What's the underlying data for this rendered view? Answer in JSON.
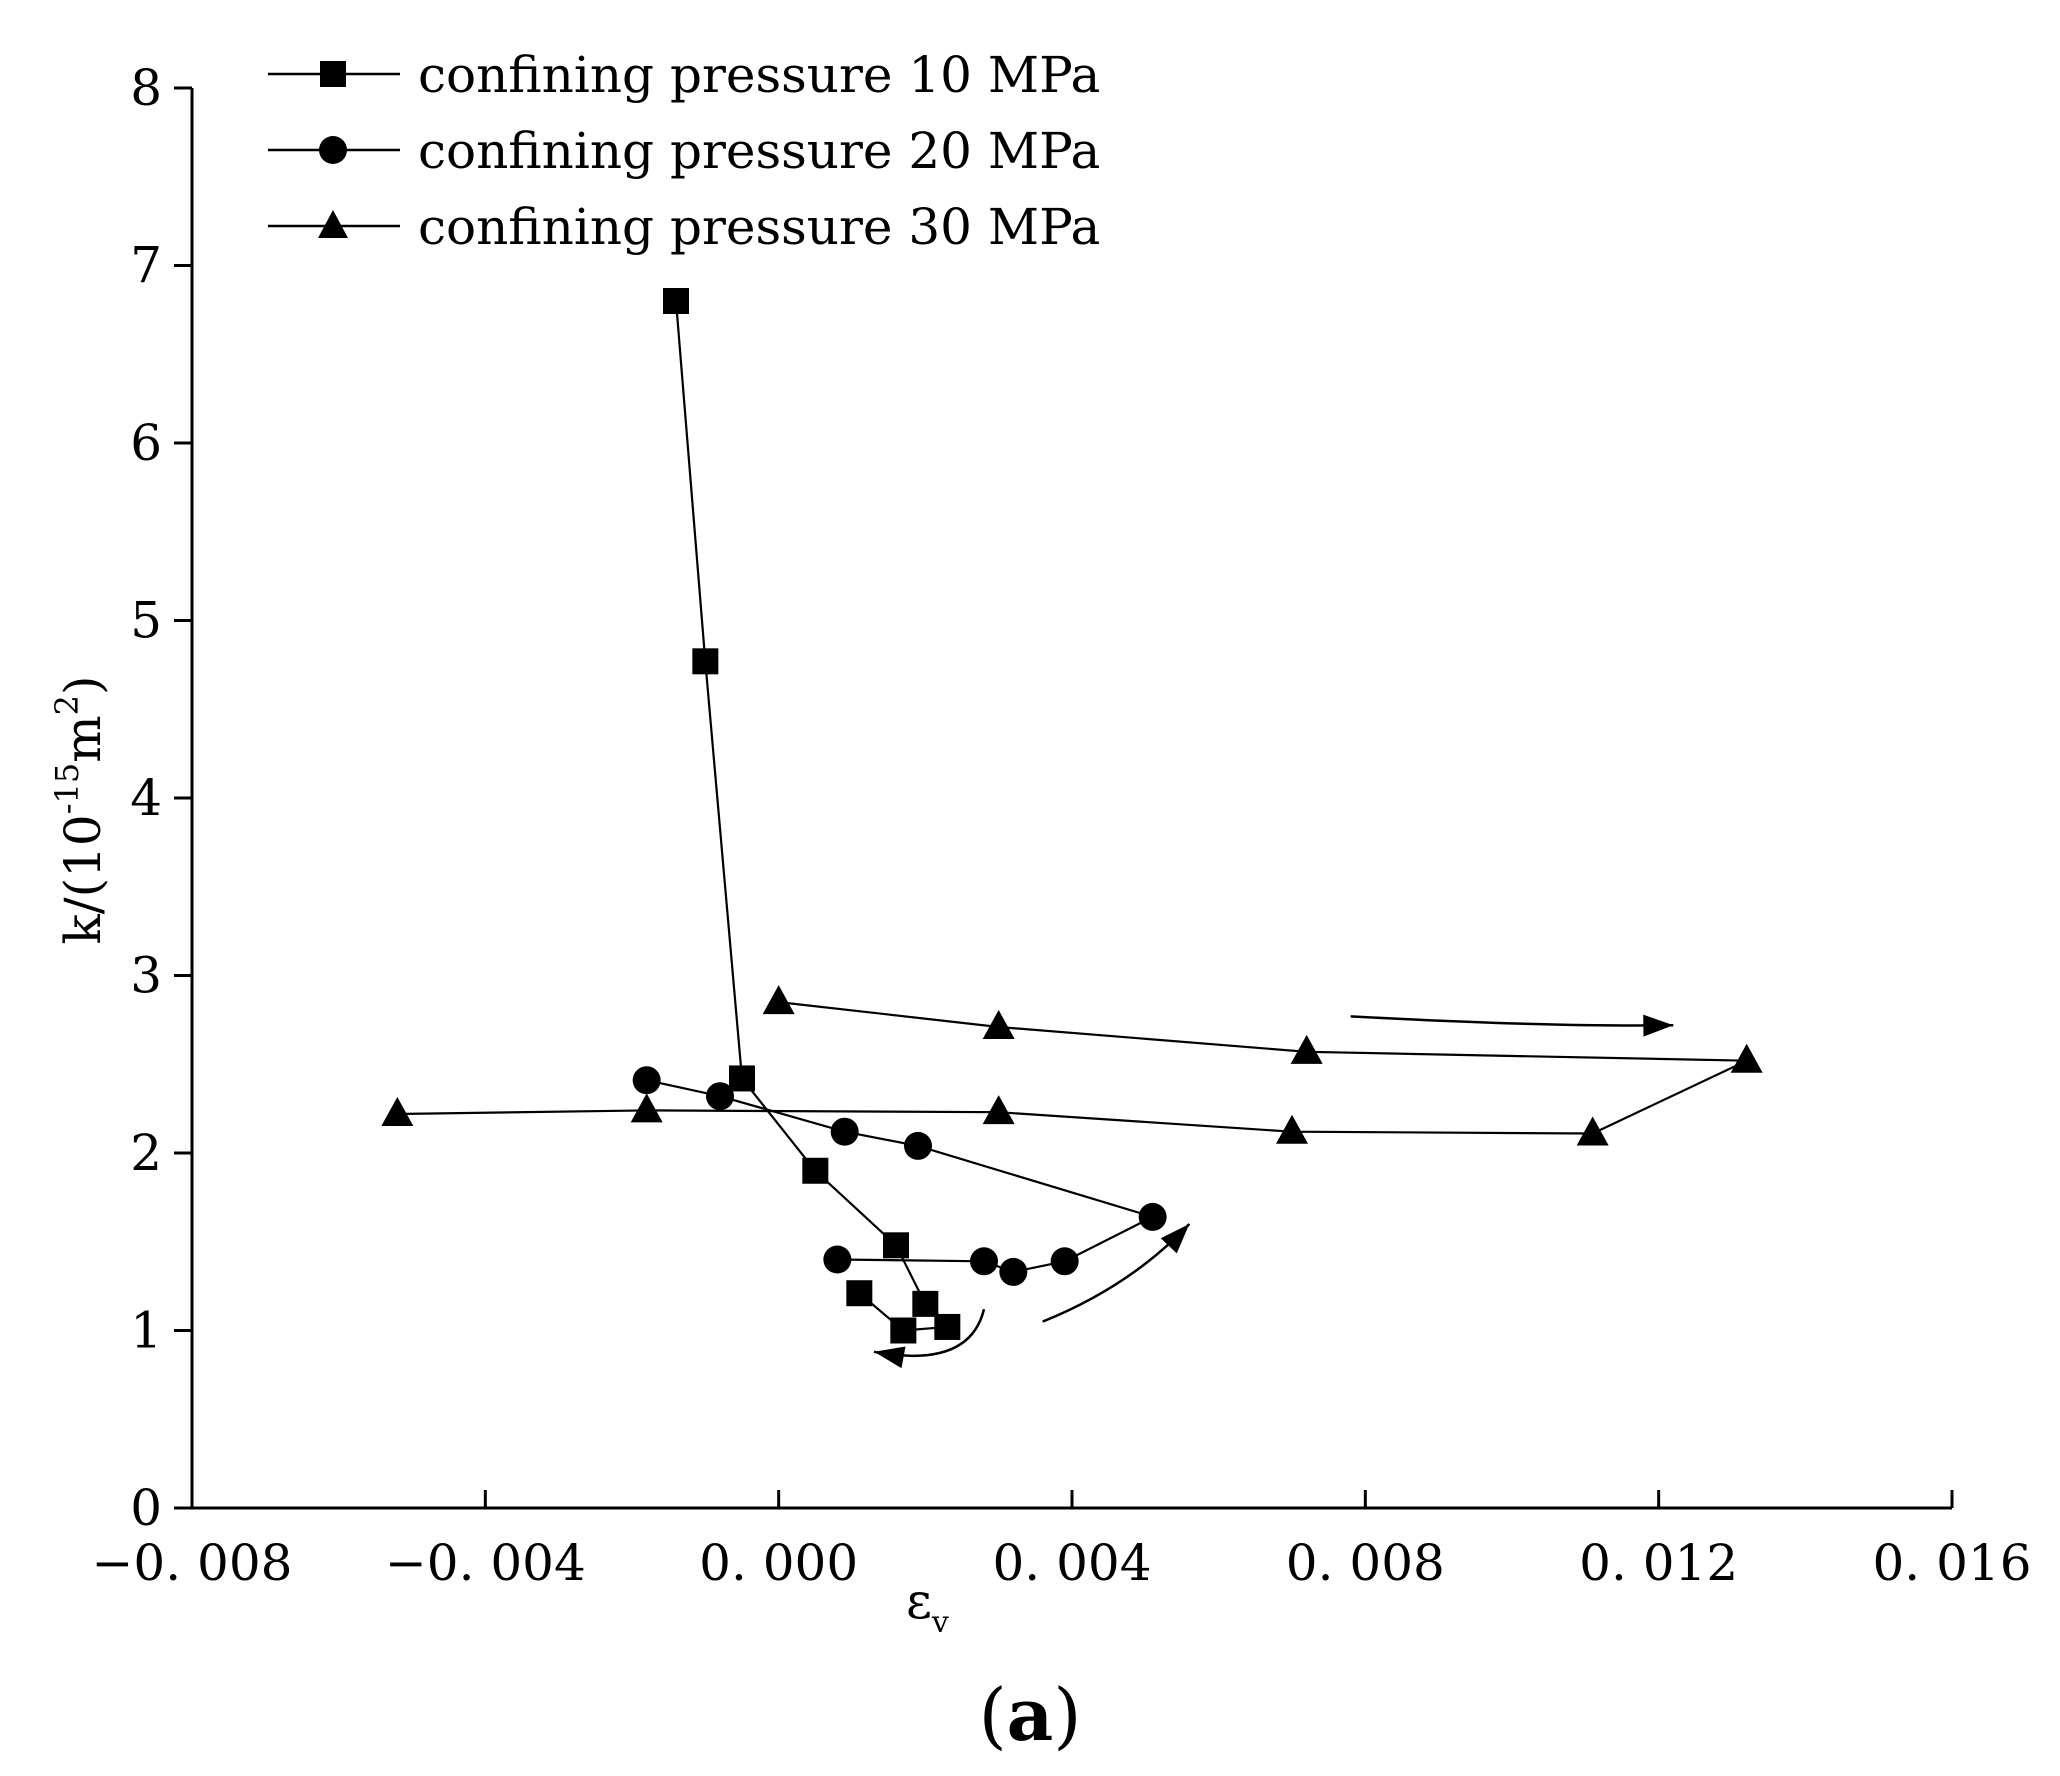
{
  "chart_data": {
    "type": "line",
    "caption_open": "(",
    "caption_letter": "a",
    "caption_close": ")",
    "xlabel": "ε",
    "xlabel_sub": "v",
    "ylabel": "k/(10",
    "ylabel_exp": "-15",
    "ylabel_unit": "m",
    "ylabel_unit_exp": "2",
    "ylabel_close": ")",
    "xlim": [
      -0.008,
      0.016
    ],
    "ylim": [
      0,
      8
    ],
    "xticks": [
      -0.008,
      -0.004,
      0.0,
      0.004,
      0.008,
      0.012,
      0.016
    ],
    "xtick_labels": [
      "−0. 008",
      "−0. 004",
      "0. 000",
      "0. 004",
      "0. 008",
      "0. 012",
      "0. 016"
    ],
    "yticks": [
      0,
      1,
      2,
      3,
      4,
      5,
      6,
      7,
      8
    ],
    "ytick_labels": [
      "0",
      "1",
      "2",
      "3",
      "4",
      "5",
      "6",
      "7",
      "8"
    ],
    "legend_position": "top-left",
    "series": [
      {
        "name": "confining pressure 10 MPa",
        "marker": "square",
        "x": [
          -0.0014,
          -0.001,
          -0.0005,
          0.0005,
          0.0016,
          0.002,
          0.0023,
          0.0017,
          0.0011
        ],
        "y": [
          6.8,
          4.77,
          2.42,
          1.9,
          1.48,
          1.15,
          1.02,
          1.0,
          1.21
        ]
      },
      {
        "name": "confining pressure 20 MPa",
        "marker": "circle",
        "x": [
          0.0008,
          0.0028,
          0.0032,
          0.0039,
          0.0051,
          0.0019,
          0.0009,
          -0.0008,
          -0.0018
        ],
        "y": [
          1.4,
          1.39,
          1.33,
          1.39,
          1.64,
          2.04,
          2.12,
          2.32,
          2.41
        ]
      },
      {
        "name": "confining pressure 30 MPa",
        "marker": "triangle",
        "x": [
          0.0,
          0.003,
          0.0072,
          0.0132,
          0.0111,
          0.007,
          0.003,
          -0.0018,
          -0.0052
        ],
        "y": [
          2.85,
          2.71,
          2.57,
          2.52,
          2.11,
          2.12,
          2.23,
          2.24,
          2.22
        ]
      }
    ],
    "annotations": [
      {
        "kind": "arrow",
        "points": [
          [
            0.0078,
            2.77
          ],
          [
            0.0105,
            2.71
          ],
          [
            0.0122,
            2.72
          ]
        ]
      },
      {
        "kind": "arrow",
        "points": [
          [
            0.0036,
            1.05
          ],
          [
            0.0048,
            1.25
          ],
          [
            0.0056,
            1.6
          ]
        ]
      },
      {
        "kind": "arrow",
        "points": [
          [
            0.0028,
            1.12
          ],
          [
            0.0026,
            0.78
          ],
          [
            0.0013,
            0.88
          ]
        ]
      }
    ]
  }
}
